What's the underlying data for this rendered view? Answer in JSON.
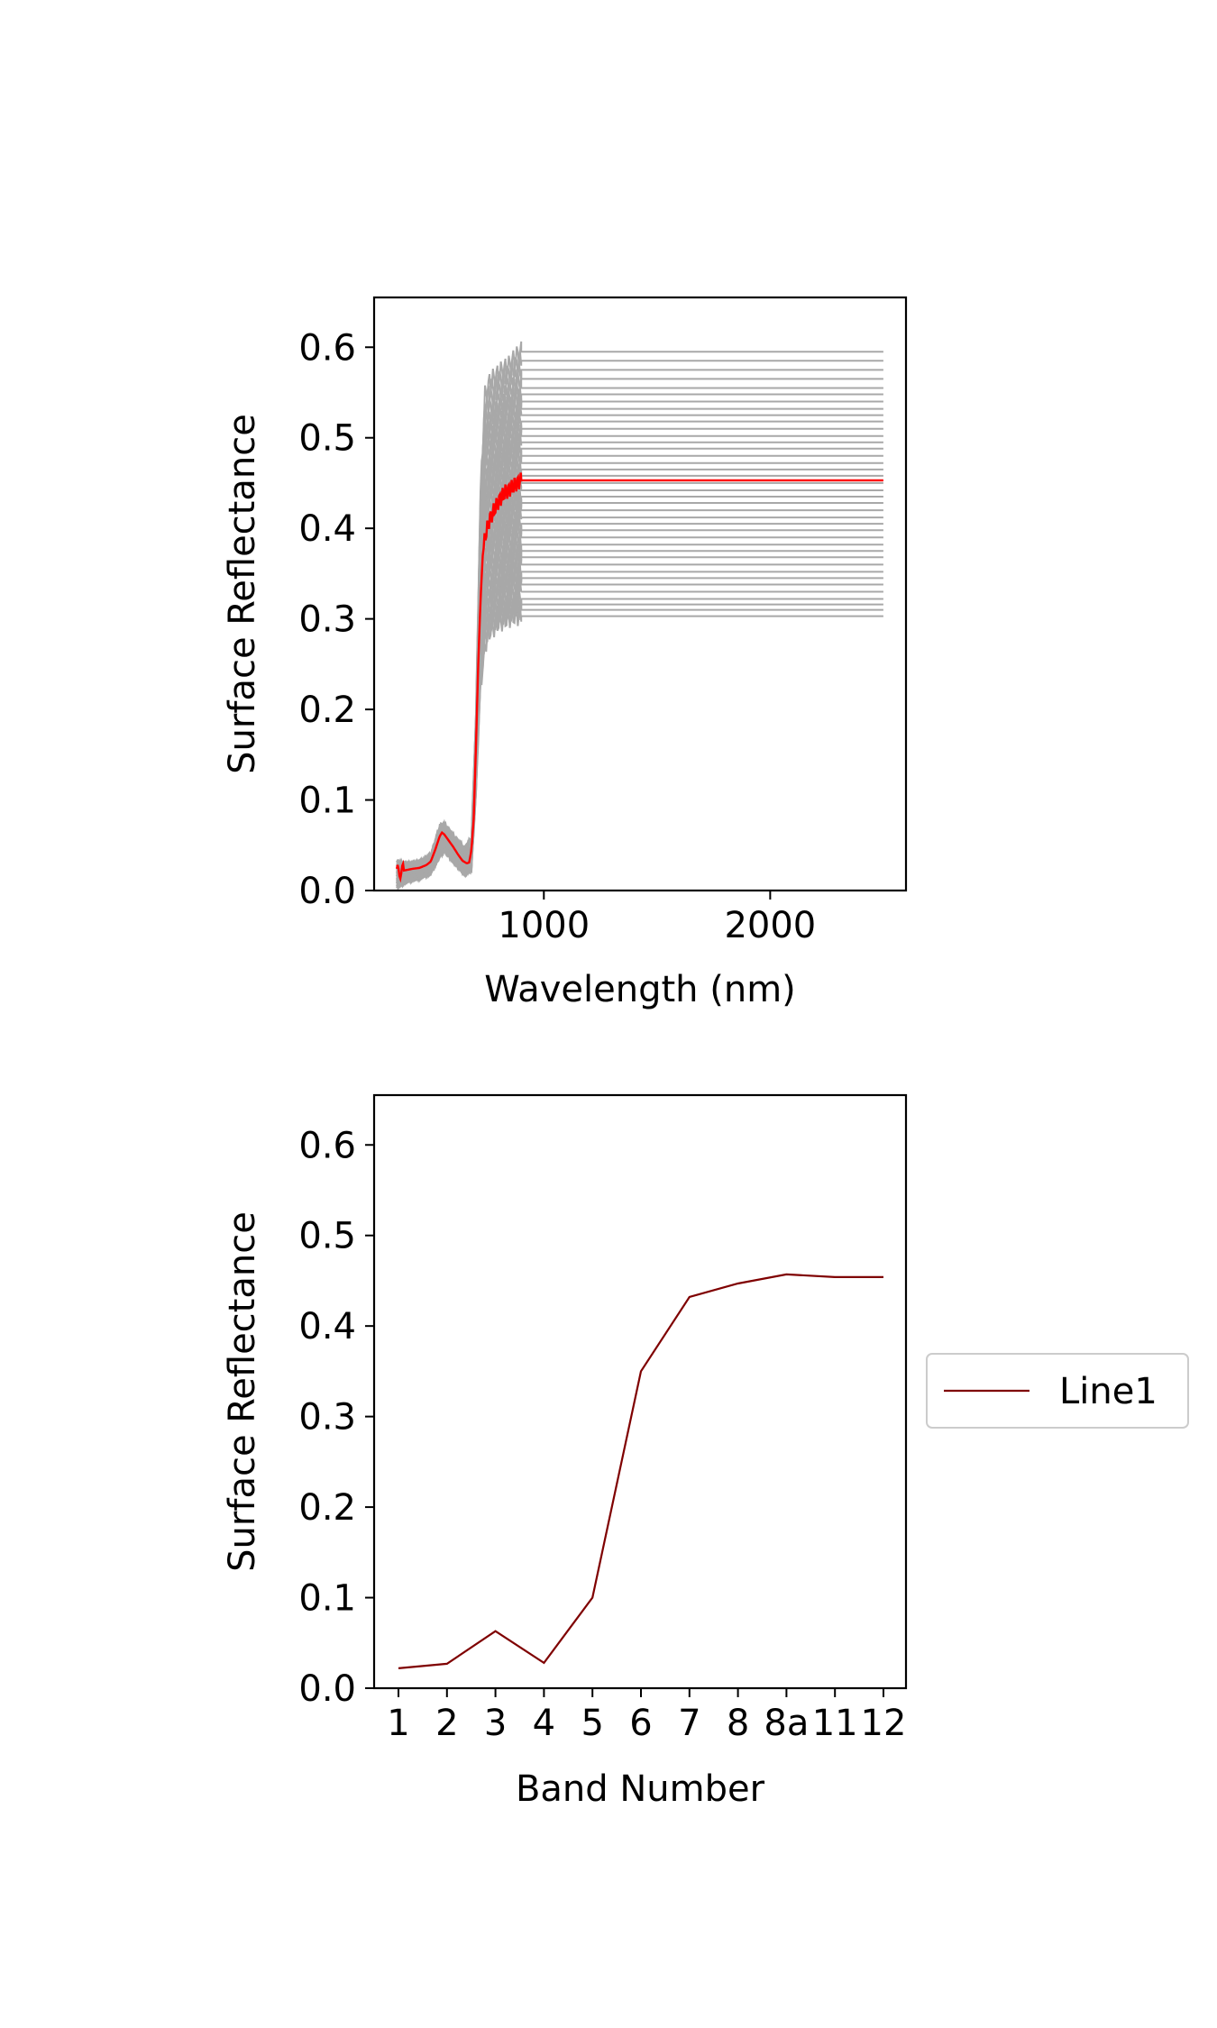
{
  "colors": {
    "background": "#ffffff",
    "axes": "#000000",
    "ensemble": "#a8a8a8",
    "mean": "#ff0000",
    "band_line": "#7f0000",
    "legend_border": "#cccccc"
  },
  "chart_data": [
    {
      "type": "line",
      "title": "",
      "xlabel": "Wavelength (nm)",
      "ylabel": "Surface Reflectance",
      "xlim": [
        250,
        2600
      ],
      "ylim": [
        0,
        0.655
      ],
      "xticks": [
        1000,
        2000
      ],
      "xtick_labels": [
        "1000",
        "2000"
      ],
      "yticks": [
        0,
        0.1,
        0.2,
        0.3,
        0.4,
        0.5,
        0.6
      ],
      "ytick_labels": [
        "0.0",
        "0.1",
        "0.2",
        "0.3",
        "0.4",
        "0.5",
        "0.6"
      ],
      "grid": false,
      "legend": false,
      "ensemble_note": "many gray spectra",
      "ensemble_plateau_levels": [
        0.303,
        0.31,
        0.316,
        0.322,
        0.33,
        0.338,
        0.345,
        0.352,
        0.36,
        0.368,
        0.375,
        0.382,
        0.39,
        0.398,
        0.405,
        0.412,
        0.42,
        0.428,
        0.435,
        0.442,
        0.45,
        0.458,
        0.465,
        0.472,
        0.48,
        0.488,
        0.495,
        0.502,
        0.51,
        0.518,
        0.525,
        0.532,
        0.54,
        0.548,
        0.555,
        0.565,
        0.575,
        0.585,
        0.595
      ],
      "series": [
        {
          "role": "mean",
          "x": [
            350,
            380,
            400,
            420,
            450,
            480,
            500,
            520,
            540,
            550,
            560,
            580,
            600,
            620,
            640,
            660,
            670,
            680,
            690,
            700,
            710,
            720,
            730,
            740,
            750,
            760,
            780,
            800,
            830,
            860,
            880,
            900,
            2500
          ],
          "y": [
            0.02,
            0.022,
            0.023,
            0.024,
            0.025,
            0.028,
            0.032,
            0.045,
            0.06,
            0.064,
            0.062,
            0.055,
            0.048,
            0.04,
            0.033,
            0.03,
            0.031,
            0.045,
            0.08,
            0.16,
            0.25,
            0.32,
            0.37,
            0.39,
            0.4,
            0.41,
            0.42,
            0.43,
            0.44,
            0.445,
            0.45,
            0.453,
            0.453
          ]
        },
        {
          "role": "ensemble-upper",
          "x": [
            350,
            400,
            450,
            500,
            540,
            560,
            600,
            650,
            680,
            700,
            720,
            740,
            760,
            800,
            850,
            880,
            900
          ],
          "y": [
            0.033,
            0.03,
            0.032,
            0.04,
            0.073,
            0.075,
            0.062,
            0.048,
            0.06,
            0.2,
            0.45,
            0.56,
            0.575,
            0.585,
            0.595,
            0.605,
            0.61
          ]
        },
        {
          "role": "ensemble-lower",
          "x": [
            350,
            400,
            450,
            500,
            540,
            560,
            600,
            650,
            680,
            700,
            720,
            740,
            760,
            800,
            850,
            880,
            900
          ],
          "y": [
            0.002,
            0.01,
            0.013,
            0.018,
            0.035,
            0.042,
            0.03,
            0.016,
            0.02,
            0.1,
            0.21,
            0.25,
            0.265,
            0.275,
            0.28,
            0.282,
            0.28
          ]
        }
      ]
    },
    {
      "type": "line",
      "title": "",
      "xlabel": "Band Number",
      "ylabel": "Surface Reflectance",
      "ylim": [
        0,
        0.655
      ],
      "yticks": [
        0,
        0.1,
        0.2,
        0.3,
        0.4,
        0.5,
        0.6
      ],
      "ytick_labels": [
        "0.0",
        "0.1",
        "0.2",
        "0.3",
        "0.4",
        "0.5",
        "0.6"
      ],
      "categories": [
        "1",
        "2",
        "3",
        "4",
        "5",
        "6",
        "7",
        "8",
        "8a",
        "11",
        "12"
      ],
      "grid": false,
      "legend_placement": "right, outside axes",
      "series": [
        {
          "name": "Line1",
          "values": [
            0.022,
            0.027,
            0.063,
            0.028,
            0.1,
            0.35,
            0.432,
            0.447,
            0.457,
            0.454,
            0.454
          ]
        }
      ]
    }
  ]
}
